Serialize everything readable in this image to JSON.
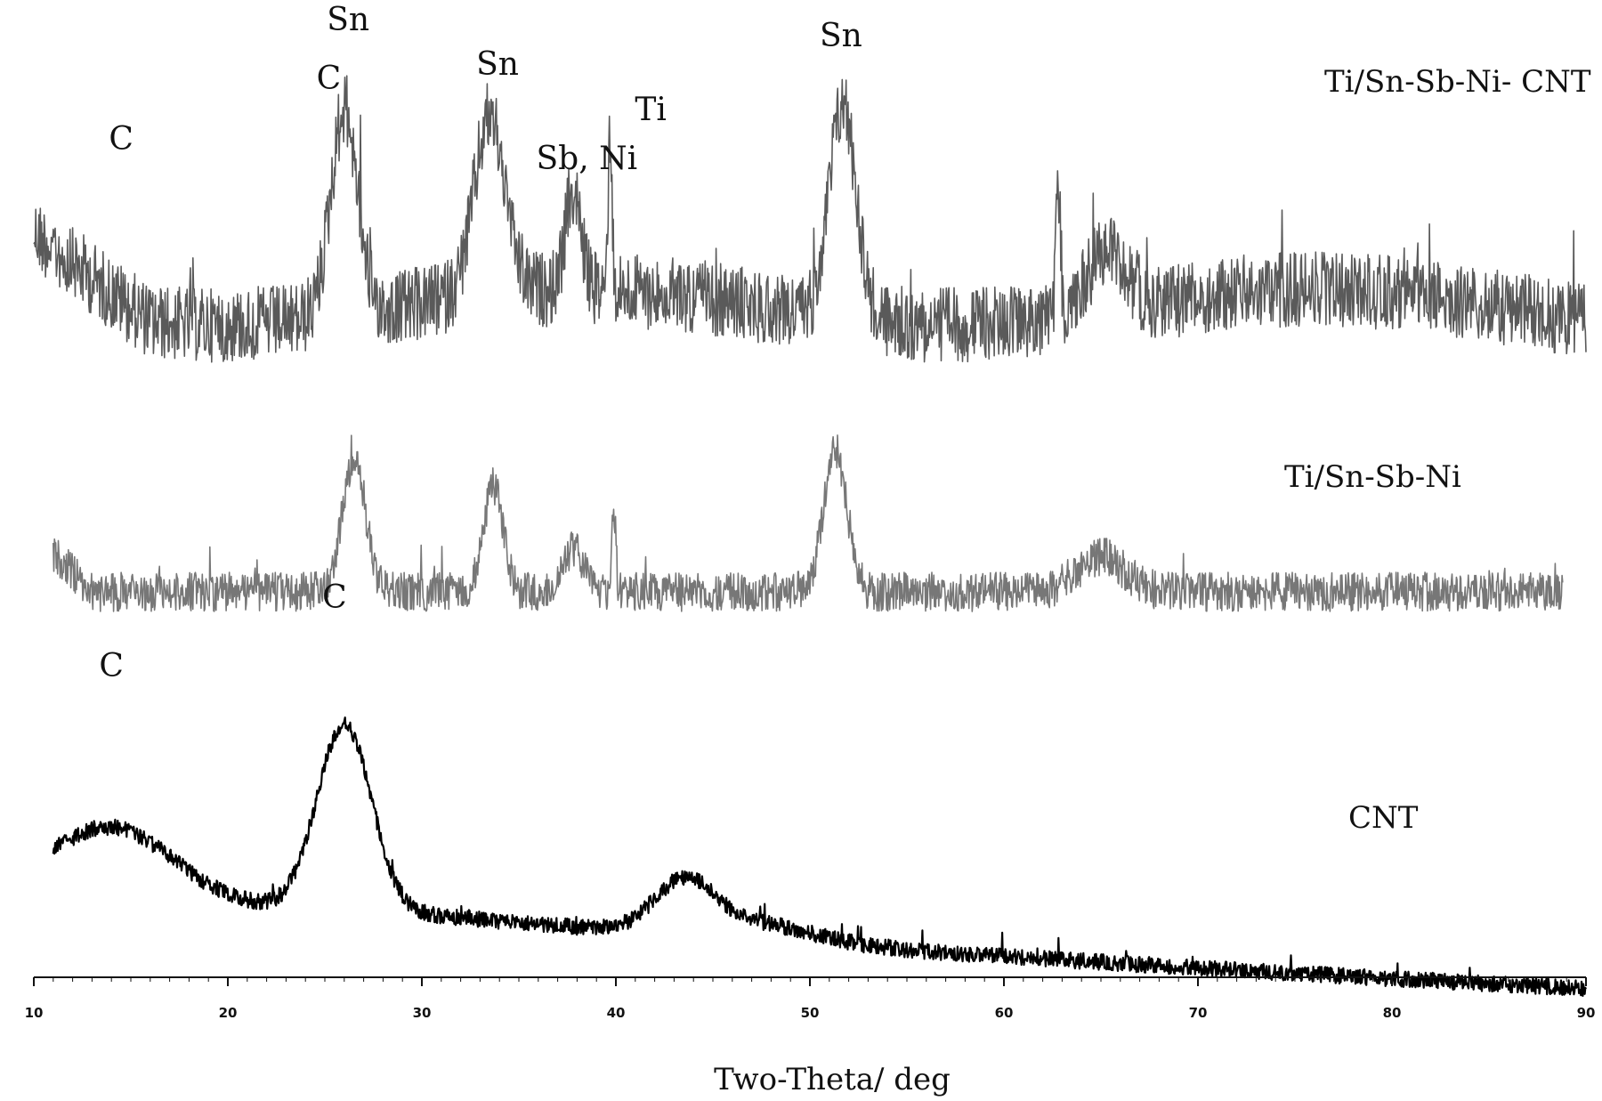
{
  "chart_data": {
    "type": "line",
    "title": "",
    "xlabel": "Two-Theta/ deg",
    "ylabel": "",
    "xlim": [
      10,
      90
    ],
    "xticks": [
      "10",
      "20",
      "30",
      "40",
      "50",
      "60",
      "70",
      "80",
      "90"
    ],
    "grid": false,
    "legend": "none",
    "series": [
      {
        "name": "Ti/Sn-Sb-Ni- CNT",
        "color": "#5a5a5a",
        "noise": "high",
        "x_range": [
          10,
          90
        ],
        "peaks_x": [
          26.0,
          33.5,
          37.8,
          39.7,
          51.7,
          62.8,
          65.3
        ],
        "annotations": [
          {
            "text": "C",
            "x": 14.5
          },
          {
            "text": "Sn",
            "x": 26.2
          },
          {
            "text": "C",
            "x": 25.2
          },
          {
            "text": "Sn",
            "x": 33.9
          },
          {
            "text": "Sb, Ni",
            "x": 38.5
          },
          {
            "text": "Ti",
            "x": 41.8
          },
          {
            "text": "Sn",
            "x": 51.6
          }
        ]
      },
      {
        "name": "Ti/Sn-Sb-Ni",
        "color": "#777777",
        "noise": "medium",
        "x_range": [
          11,
          88.8
        ],
        "peaks_x": [
          26.5,
          33.7,
          37.8,
          39.9,
          51.3,
          65.0
        ],
        "annotations": []
      },
      {
        "name": "CNT",
        "color": "#000000",
        "noise": "low",
        "x_range": [
          11,
          90
        ],
        "peaks_x": [
          14.0,
          26.0,
          43.5
        ],
        "annotations": [
          {
            "text": "C",
            "x": 14.0
          },
          {
            "text": "C",
            "x": 25.5
          }
        ]
      }
    ]
  }
}
